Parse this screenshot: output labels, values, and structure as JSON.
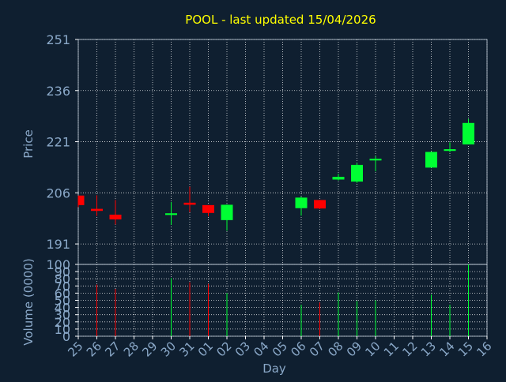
{
  "chart_data": {
    "type": "candlestick",
    "title": "POOL - last updated 15/04/2026",
    "xlabel": "Day",
    "colors": {
      "background": "#0f1f30",
      "title": "#ffff00",
      "axis_text": "#8aa8c8",
      "tick_text": "#ffffff",
      "grid": "#ffffff",
      "up": "#00ff33",
      "down": "#ff0000"
    },
    "x_ticks": [
      "25",
      "26",
      "27",
      "28",
      "29",
      "30",
      "31",
      "01",
      "02",
      "03",
      "04",
      "05",
      "06",
      "07",
      "08",
      "09",
      "10",
      "11",
      "12",
      "13",
      "14",
      "15",
      "16"
    ],
    "price": {
      "ylabel": "Price",
      "ylim": [
        185,
        251
      ],
      "yticks": [
        191,
        206,
        221,
        236,
        251
      ],
      "candles": [
        {
          "day": "25",
          "open": 205.2,
          "high": 205.2,
          "low": 201.8,
          "close": 202.4
        },
        {
          "day": "26",
          "open": 201.3,
          "high": 205.3,
          "low": 199.2,
          "close": 200.7
        },
        {
          "day": "27",
          "open": 199.6,
          "high": 203.9,
          "low": 196.7,
          "close": 198.2
        },
        {
          "day": "30",
          "open": 199.5,
          "high": 203.3,
          "low": 196.6,
          "close": 200.0
        },
        {
          "day": "31",
          "open": 203.1,
          "high": 207.8,
          "low": 200.3,
          "close": 202.5
        },
        {
          "day": "01",
          "open": 202.4,
          "high": 202.4,
          "low": 199.1,
          "close": 200.1
        },
        {
          "day": "02",
          "open": 198.0,
          "high": 202.6,
          "low": 194.9,
          "close": 202.5
        },
        {
          "day": "06",
          "open": 201.5,
          "high": 204.9,
          "low": 199.3,
          "close": 204.6
        },
        {
          "day": "07",
          "open": 203.9,
          "high": 203.9,
          "low": 201.2,
          "close": 201.4
        },
        {
          "day": "08",
          "open": 209.9,
          "high": 211.6,
          "low": 209.6,
          "close": 210.7
        },
        {
          "day": "09",
          "open": 209.3,
          "high": 214.8,
          "low": 208.9,
          "close": 214.2
        },
        {
          "day": "10",
          "open": 215.5,
          "high": 216.8,
          "low": 212.3,
          "close": 216.0
        },
        {
          "day": "13",
          "open": 213.4,
          "high": 218.1,
          "low": 213.4,
          "close": 218.0
        },
        {
          "day": "14",
          "open": 218.3,
          "high": 220.8,
          "low": 217.9,
          "close": 218.8
        },
        {
          "day": "15",
          "open": 220.2,
          "high": 227.7,
          "low": 220.2,
          "close": 226.5
        }
      ]
    },
    "volume": {
      "ylabel": "Volume (0000)",
      "ylim": [
        0,
        100
      ],
      "yticks": [
        0,
        10,
        20,
        30,
        40,
        50,
        60,
        70,
        80,
        90,
        100
      ],
      "bars": [
        {
          "day": "26",
          "value": 72,
          "dir": "down"
        },
        {
          "day": "27",
          "value": 66,
          "dir": "down"
        },
        {
          "day": "30",
          "value": 81,
          "dir": "up"
        },
        {
          "day": "31",
          "value": 75,
          "dir": "down"
        },
        {
          "day": "01",
          "value": 73,
          "dir": "down"
        },
        {
          "day": "02",
          "value": 60,
          "dir": "up"
        },
        {
          "day": "06",
          "value": 44,
          "dir": "up"
        },
        {
          "day": "07",
          "value": 47,
          "dir": "down"
        },
        {
          "day": "08",
          "value": 61,
          "dir": "up"
        },
        {
          "day": "09",
          "value": 49,
          "dir": "up"
        },
        {
          "day": "10",
          "value": 50,
          "dir": "up"
        },
        {
          "day": "13",
          "value": 58,
          "dir": "up"
        },
        {
          "day": "14",
          "value": 44,
          "dir": "up"
        },
        {
          "day": "15",
          "value": 100,
          "dir": "up"
        }
      ]
    }
  }
}
